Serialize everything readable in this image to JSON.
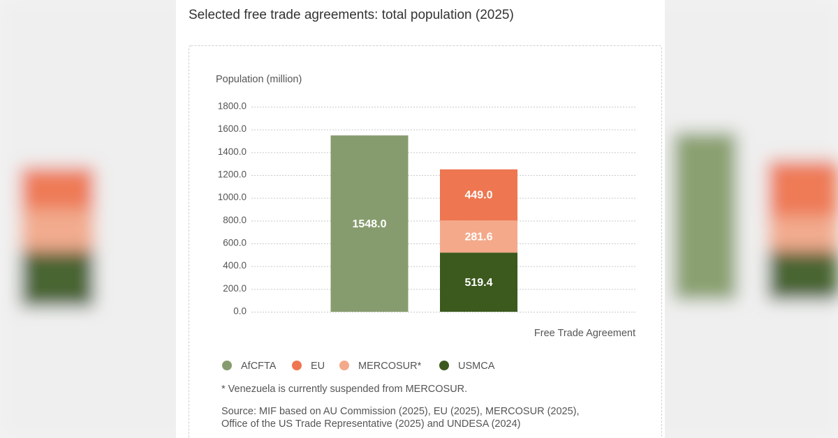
{
  "chart_data": {
    "type": "stacked_bar",
    "title": "Selected free trade agreements: total population (2025)",
    "y_label": "Population (million)",
    "x_label": "Free Trade Agreement",
    "categories": [
      null,
      null
    ],
    "series": [
      {
        "name": "AfCFTA",
        "color": "#879c6e",
        "values": [
          1548.0,
          null
        ],
        "value_labels": [
          "1548.0",
          null
        ]
      },
      {
        "name": "EU",
        "color": "#ee7650",
        "values": [
          null,
          449.0
        ],
        "value_labels": [
          null,
          "449.0"
        ]
      },
      {
        "name": "MERCOSUR*",
        "color": "#f4a98a",
        "values": [
          null,
          281.6
        ],
        "value_labels": [
          null,
          "281.6"
        ]
      },
      {
        "name": "USMCA",
        "color": "#3c5a1e",
        "values": [
          null,
          519.4
        ],
        "value_labels": [
          null,
          "519.4"
        ]
      }
    ],
    "ylim": [
      0,
      1800
    ],
    "yticks": [
      {
        "value": 0,
        "label": "0.0"
      },
      {
        "value": 200,
        "label": "200.0"
      },
      {
        "value": 400,
        "label": "400.0"
      },
      {
        "value": 600,
        "label": "600.0"
      },
      {
        "value": 800,
        "label": "800.0"
      },
      {
        "value": 1000,
        "label": "1000.0"
      },
      {
        "value": 1200,
        "label": "1200.0"
      },
      {
        "value": 1400,
        "label": "1400.0"
      },
      {
        "value": 1600,
        "label": "1600.0"
      },
      {
        "value": 1800,
        "label": "1800.0"
      }
    ],
    "grid": true,
    "legend": "bottom",
    "footnote": "* Venezuela is currently suspended from MERCOSUR.",
    "source": [
      "Source: MIF based on AU Commission (2025), EU (2025), MERCOSUR (2025),",
      "Office of the US Trade Representative (2025) and UNDESA (2024)"
    ]
  }
}
